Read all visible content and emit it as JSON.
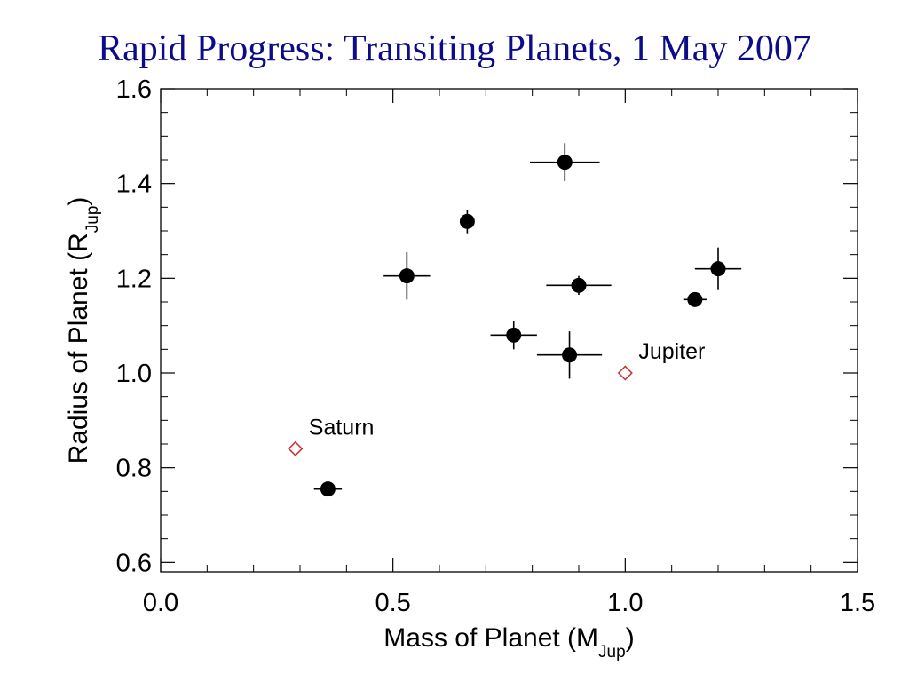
{
  "slide": {
    "title": "Rapid Progress: Transiting Planets, 1 May 2007"
  },
  "colors": {
    "title": "#0c0c8a",
    "axis": "#000000",
    "planet_marker": "#000000",
    "solar_system_marker": "#d22a2a"
  },
  "chart_data": {
    "type": "scatter",
    "title": "Rapid Progress: Transiting Planets, 1 May 2007",
    "xlabel": {
      "main": "Mass of Planet (M",
      "sub": "Jup",
      "close": ")"
    },
    "ylabel": {
      "main": "Radius of Planet (R",
      "sub": "Jup",
      "close": ")"
    },
    "xlim": [
      0.0,
      1.5
    ],
    "ylim": [
      0.58,
      1.6
    ],
    "xticks": [
      "0.0",
      "0.5",
      "1.0",
      "1.5"
    ],
    "yticks": [
      "0.6",
      "0.8",
      "1.0",
      "1.2",
      "1.4",
      "1.6"
    ],
    "grid": false,
    "series": [
      {
        "marker": "filled-circle",
        "points": [
          {
            "x": 0.36,
            "y": 0.755,
            "xerr": 0.03,
            "yerr": 0.01
          },
          {
            "x": 0.53,
            "y": 1.205,
            "xerr": 0.05,
            "yerr": 0.05
          },
          {
            "x": 0.66,
            "y": 1.32,
            "xerr": 0.0,
            "yerr": 0.025
          },
          {
            "x": 0.76,
            "y": 1.08,
            "xerr": 0.05,
            "yerr": 0.03
          },
          {
            "x": 0.87,
            "y": 1.445,
            "xerr": 0.075,
            "yerr": 0.04
          },
          {
            "x": 0.88,
            "y": 1.038,
            "xerr": 0.07,
            "yerr": 0.05
          },
          {
            "x": 0.9,
            "y": 1.185,
            "xerr": 0.07,
            "yerr": 0.02
          },
          {
            "x": 1.15,
            "y": 1.155,
            "xerr": 0.025,
            "yerr": 0.0
          },
          {
            "x": 1.2,
            "y": 1.22,
            "xerr": 0.05,
            "yerr": 0.045
          }
        ]
      },
      {
        "marker": "open-diamond",
        "points": [
          {
            "x": 0.29,
            "y": 0.84,
            "label": "Saturn"
          },
          {
            "x": 1.0,
            "y": 1.0,
            "label": "Jupiter"
          }
        ]
      }
    ]
  }
}
